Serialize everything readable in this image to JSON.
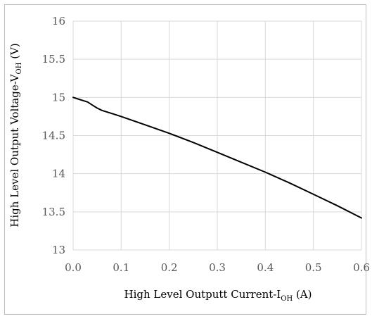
{
  "chart_data": {
    "type": "line",
    "xlabel_main": "High Level Outputt Current-I",
    "xlabel_sub": "OH",
    "xlabel_unit": " (A)",
    "ylabel_main": "High Level Output Voltage-V",
    "ylabel_sub": "OH",
    "ylabel_unit": " (V)",
    "xlim": [
      0,
      0.6
    ],
    "ylim": [
      13,
      16
    ],
    "xticks": [
      0.0,
      0.1,
      0.2,
      0.3,
      0.4,
      0.5,
      0.6
    ],
    "xtick_labels": [
      "0.0",
      "0.1",
      "0.2",
      "0.3",
      "0.4",
      "0.5",
      "0.6"
    ],
    "yticks": [
      13,
      13.5,
      14,
      14.5,
      15,
      15.5,
      16
    ],
    "ytick_labels": [
      "13",
      "13.5",
      "14",
      "14.5",
      "15",
      "15.5",
      "16"
    ],
    "grid": true,
    "series": [
      {
        "color": "#000000",
        "x": [
          0.0,
          0.01,
          0.02,
          0.03,
          0.04,
          0.05,
          0.06,
          0.08,
          0.1,
          0.15,
          0.2,
          0.25,
          0.3,
          0.35,
          0.4,
          0.45,
          0.5,
          0.55,
          0.6
        ],
        "y": [
          15.0,
          14.98,
          14.96,
          14.94,
          14.9,
          14.86,
          14.83,
          14.79,
          14.75,
          14.64,
          14.53,
          14.41,
          14.28,
          14.15,
          14.02,
          13.88,
          13.73,
          13.58,
          13.42
        ]
      }
    ]
  }
}
